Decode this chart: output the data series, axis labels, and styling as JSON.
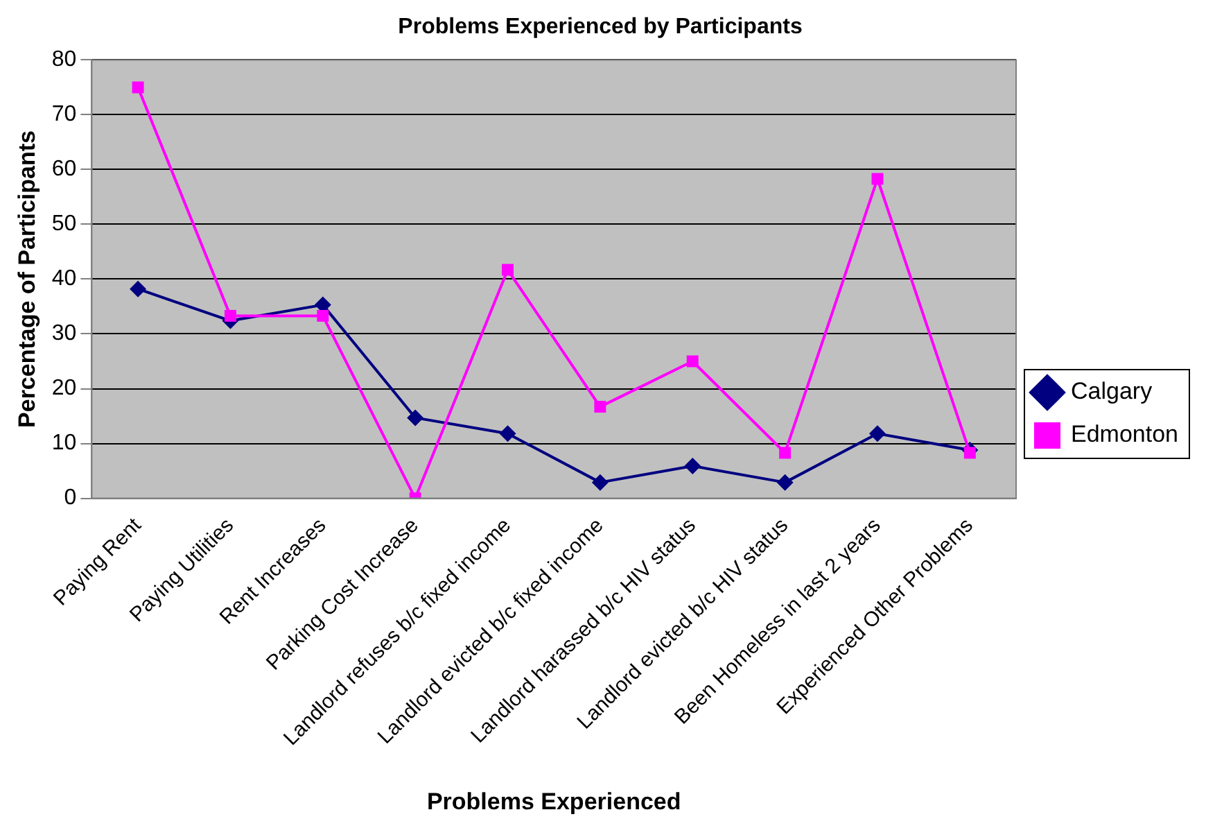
{
  "chart_data": {
    "type": "line",
    "title": "Problems Experienced by Participants",
    "xlabel": "Problems Experienced",
    "ylabel": "Percentage of Participants",
    "categories": [
      "Paying Rent",
      "Paying Utilities",
      "Rent Increases",
      "Parking Cost Increase",
      "Landlord refuses b/c fixed income",
      "Landlord evicted b/c fixed income",
      "Landlord harassed b/c HIV status",
      "Landlord evicted b/c HIV status",
      "Been Homeless in last 2 years",
      "Experienced Other Problems"
    ],
    "series": [
      {
        "name": "Calgary",
        "color": "#000080",
        "marker": "diamond",
        "values": [
          38.2,
          32.4,
          35.3,
          14.7,
          11.8,
          2.9,
          5.9,
          2.9,
          11.8,
          8.8
        ]
      },
      {
        "name": "Edmonton",
        "color": "#ff00ff",
        "marker": "square",
        "values": [
          75,
          33.3,
          33.3,
          0,
          41.7,
          16.7,
          25,
          8.3,
          58.3,
          8.3
        ]
      }
    ],
    "ylim": [
      0,
      80
    ],
    "yticks": [
      0,
      10,
      20,
      30,
      40,
      50,
      60,
      70,
      80
    ],
    "grid": "y",
    "legend": "right"
  }
}
